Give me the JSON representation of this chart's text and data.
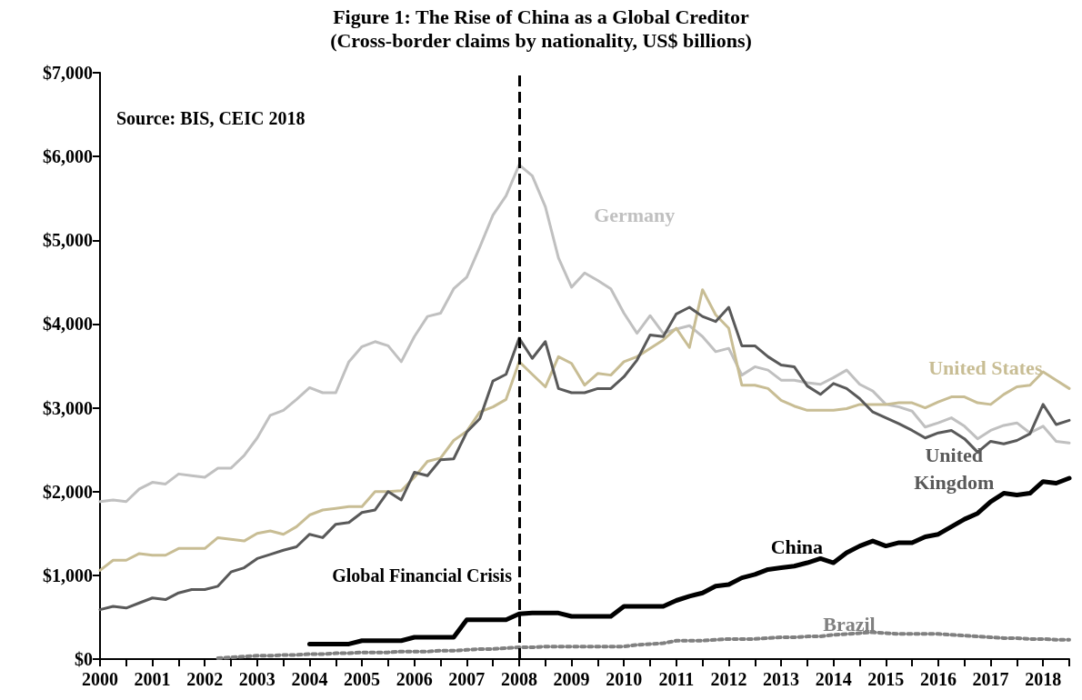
{
  "chart_data": {
    "type": "line",
    "title": "Figure 1: The Rise of China as a Global Creditor",
    "subtitle": "(Cross-border claims by nationality, US$ billions)",
    "annotations": [
      "Source: BIS, CEIC 2018"
    ],
    "x": [
      2000,
      2000.25,
      2000.5,
      2000.75,
      2001,
      2001.25,
      2001.5,
      2001.75,
      2002,
      2002.25,
      2002.5,
      2002.75,
      2003,
      2003.25,
      2003.5,
      2003.75,
      2004,
      2004.25,
      2004.5,
      2004.75,
      2005,
      2005.25,
      2005.5,
      2005.75,
      2006,
      2006.25,
      2006.5,
      2006.75,
      2007,
      2007.25,
      2007.5,
      2007.75,
      2008,
      2008.25,
      2008.5,
      2008.75,
      2009,
      2009.25,
      2009.5,
      2009.75,
      2010,
      2010.25,
      2010.5,
      2010.75,
      2011,
      2011.25,
      2011.5,
      2011.75,
      2012,
      2012.25,
      2012.5,
      2012.75,
      2013,
      2013.25,
      2013.5,
      2013.75,
      2014,
      2014.25,
      2014.5,
      2014.75,
      2015,
      2015.25,
      2015.5,
      2015.75,
      2016,
      2016.25,
      2016.5,
      2016.75,
      2017,
      2017.25,
      2017.5,
      2017.75,
      2018,
      2018.25,
      2018.5
    ],
    "series": [
      {
        "name": "Germany",
        "color": "#c0c0c0",
        "values": [
          1880,
          1900,
          1880,
          2030,
          2110,
          2090,
          2210,
          2190,
          2170,
          2280,
          2280,
          2430,
          2640,
          2910,
          2970,
          3100,
          3240,
          3180,
          3180,
          3550,
          3730,
          3790,
          3740,
          3550,
          3850,
          4090,
          4130,
          4420,
          4560,
          4920,
          5300,
          5530,
          5900,
          5770,
          5400,
          4790,
          4440,
          4610,
          4520,
          4420,
          4130,
          3890,
          4100,
          3890,
          3940,
          3980,
          3850,
          3670,
          3710,
          3390,
          3490,
          3450,
          3330,
          3330,
          3300,
          3280,
          3360,
          3450,
          3280,
          3200,
          3040,
          3010,
          2960,
          2770,
          2820,
          2880,
          2780,
          2630,
          2730,
          2790,
          2820,
          2700,
          2780,
          2600,
          2580
        ]
      },
      {
        "name": "United States",
        "color": "#c8bd94",
        "values": [
          1060,
          1180,
          1180,
          1260,
          1240,
          1240,
          1320,
          1320,
          1320,
          1450,
          1430,
          1410,
          1500,
          1530,
          1490,
          1580,
          1720,
          1780,
          1800,
          1820,
          1820,
          2000,
          2000,
          2010,
          2170,
          2360,
          2400,
          2610,
          2720,
          2950,
          3010,
          3100,
          3550,
          3400,
          3250,
          3610,
          3530,
          3270,
          3410,
          3390,
          3550,
          3610,
          3710,
          3810,
          3950,
          3720,
          4410,
          4110,
          3950,
          3270,
          3270,
          3230,
          3090,
          3020,
          2970,
          2970,
          2970,
          2990,
          3040,
          3040,
          3040,
          3060,
          3060,
          3000,
          3070,
          3130,
          3130,
          3060,
          3040,
          3160,
          3250,
          3270,
          3430,
          3330,
          3230
        ]
      },
      {
        "name": "United Kingdom",
        "color": "#595959",
        "values": [
          590,
          630,
          610,
          670,
          730,
          710,
          790,
          830,
          830,
          870,
          1040,
          1090,
          1200,
          1250,
          1300,
          1340,
          1490,
          1450,
          1610,
          1630,
          1750,
          1780,
          2000,
          1900,
          2230,
          2190,
          2380,
          2390,
          2710,
          2870,
          3320,
          3400,
          3830,
          3590,
          3790,
          3230,
          3180,
          3180,
          3230,
          3230,
          3370,
          3570,
          3870,
          3850,
          4120,
          4200,
          4090,
          4030,
          4200,
          3740,
          3740,
          3610,
          3510,
          3490,
          3260,
          3160,
          3290,
          3230,
          3110,
          2950,
          2880,
          2810,
          2730,
          2640,
          2700,
          2730,
          2630,
          2470,
          2600,
          2570,
          2610,
          2690,
          3040,
          2800,
          2850
        ]
      },
      {
        "name": "China",
        "color": "#000000",
        "values": [
          null,
          null,
          null,
          null,
          null,
          null,
          null,
          null,
          null,
          null,
          null,
          null,
          null,
          null,
          null,
          null,
          180,
          180,
          180,
          180,
          220,
          220,
          220,
          220,
          260,
          260,
          260,
          260,
          470,
          470,
          470,
          470,
          540,
          550,
          550,
          550,
          510,
          510,
          510,
          510,
          630,
          630,
          630,
          630,
          700,
          750,
          790,
          870,
          890,
          970,
          1010,
          1070,
          1090,
          1110,
          1150,
          1200,
          1150,
          1270,
          1350,
          1410,
          1350,
          1390,
          1390,
          1460,
          1490,
          1580,
          1670,
          1740,
          1880,
          1980,
          1960,
          1980,
          2120,
          2100,
          2160
        ]
      },
      {
        "name": "Brazil",
        "color": "#808080",
        "line_style": "dotted",
        "values": [
          null,
          null,
          null,
          null,
          null,
          null,
          null,
          null,
          null,
          10,
          20,
          30,
          40,
          40,
          50,
          50,
          60,
          60,
          70,
          70,
          80,
          80,
          80,
          90,
          90,
          90,
          100,
          100,
          110,
          120,
          120,
          130,
          140,
          140,
          150,
          150,
          150,
          150,
          150,
          150,
          150,
          170,
          180,
          190,
          220,
          220,
          220,
          230,
          240,
          240,
          240,
          250,
          260,
          260,
          270,
          270,
          290,
          300,
          310,
          320,
          310,
          300,
          300,
          300,
          300,
          290,
          280,
          270,
          260,
          250,
          250,
          240,
          240,
          230,
          230
        ]
      }
    ],
    "xlim": [
      2000,
      2018.5
    ],
    "xticks": [
      2000,
      {
        "value": 2000.5,
        "label": null
      },
      2001,
      {
        "value": 2001.5,
        "label": null
      },
      2002,
      {
        "value": 2002.5,
        "label": null
      },
      2003,
      {
        "value": 2003.5,
        "label": null
      },
      2004,
      {
        "value": 2004.5,
        "label": null
      },
      2005,
      {
        "value": 2005.5,
        "label": null
      },
      2006,
      {
        "value": 2006.5,
        "label": null
      },
      2007,
      {
        "value": 2007.5,
        "label": null
      },
      2008,
      {
        "value": 2008.5,
        "label": null
      },
      2009,
      {
        "value": 2009.5,
        "label": null
      },
      2010,
      {
        "value": 2010.5,
        "label": null
      },
      2011,
      {
        "value": 2011.5,
        "label": null
      },
      2012,
      {
        "value": 2012.5,
        "label": null
      },
      2013,
      {
        "value": 2013.5,
        "label": null
      },
      2014,
      {
        "value": 2014.5,
        "label": null
      },
      2015,
      {
        "value": 2015.5,
        "label": null
      },
      2016,
      {
        "value": 2016.5,
        "label": null
      },
      2017,
      {
        "value": 2017.5,
        "label": null
      },
      2018,
      {
        "value": 2018.5,
        "label": null
      }
    ],
    "ylim": [
      0,
      7000
    ],
    "yticks": [
      {
        "value": 0,
        "label": "$0"
      },
      {
        "value": 1000,
        "label": "$1,000"
      },
      {
        "value": 2000,
        "label": "$2,000"
      },
      {
        "value": 3000,
        "label": "$3,000"
      },
      {
        "value": 4000,
        "label": "$4,000"
      },
      {
        "value": 5000,
        "label": "$5,000"
      },
      {
        "value": 6000,
        "label": "$6,000"
      },
      {
        "value": 7000,
        "label": "$7,000"
      }
    ],
    "ref_lines": [
      {
        "axis": "x",
        "value": 2008,
        "label": "Global Financial Crisis",
        "color": "#000000",
        "line_style": "dashed"
      }
    ],
    "grid": false,
    "legend": false,
    "marker": "none",
    "line_style": "solid"
  }
}
